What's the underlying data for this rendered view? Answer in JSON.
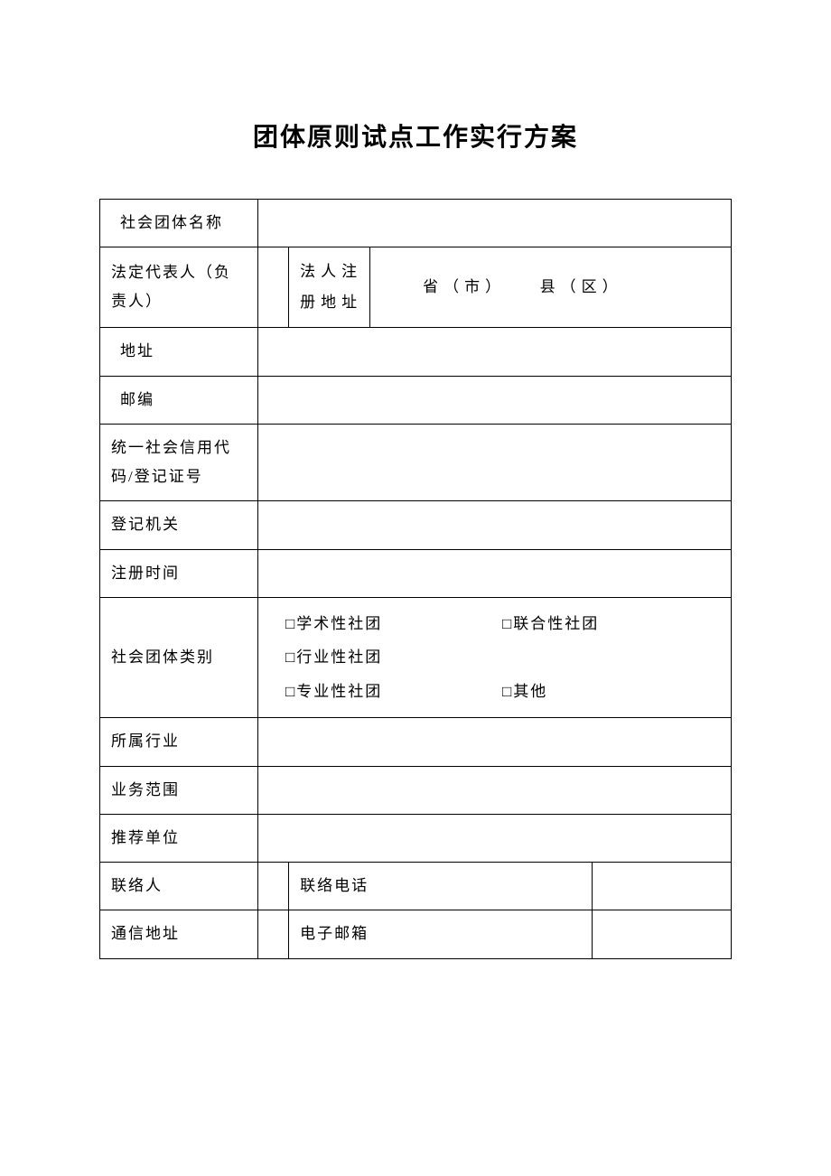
{
  "title": "团体原则试点工作实行方案",
  "rows": {
    "org_name": {
      "label": "社会团体名称",
      "value": ""
    },
    "legal_rep": {
      "label": "法定代表人（负责人）",
      "value": ""
    },
    "reg_addr_label": "法人注册地址",
    "reg_addr_value": "　　省（市）　　县（区）",
    "address": {
      "label": "地址",
      "value": ""
    },
    "postcode": {
      "label": "邮编",
      "value": ""
    },
    "credit_code": {
      "label": "统一社会信用代码/登记证号",
      "value": ""
    },
    "reg_authority": {
      "label": "登记机关",
      "value": ""
    },
    "reg_time": {
      "label": "注册时间",
      "value": ""
    },
    "org_type": {
      "label": "社会团体类别",
      "options": {
        "a": "□学术性社团",
        "b": "□联合性社团",
        "c": "□行业性社团",
        "d": "□专业性社团",
        "e": "□其他"
      }
    },
    "industry": {
      "label": "所属行业",
      "value": ""
    },
    "scope": {
      "label": "业务范围",
      "value": ""
    },
    "recommender": {
      "label": "推荐单位",
      "value": ""
    },
    "contact": {
      "label": "联络人",
      "value": ""
    },
    "phone": {
      "label": "联络电话",
      "value": ""
    },
    "mail_addr": {
      "label": "通信地址",
      "value": ""
    },
    "email": {
      "label": "电子邮箱",
      "value": ""
    }
  }
}
